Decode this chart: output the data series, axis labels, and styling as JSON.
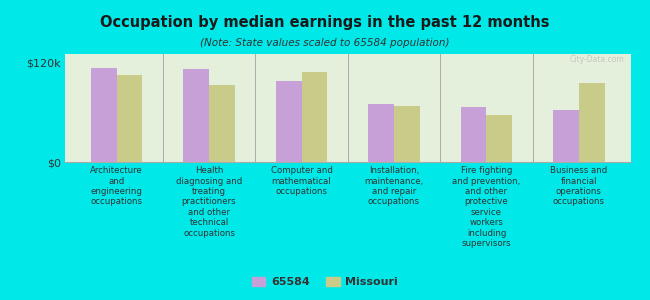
{
  "title": "Occupation by median earnings in the past 12 months",
  "subtitle": "(Note: State values scaled to 65584 population)",
  "background_color": "#00e8e8",
  "plot_bg_top": "#e8f5e0",
  "plot_bg_bottom": "#d8f0e8",
  "categories": [
    "Architecture\nand\nengineering\noccupations",
    "Health\ndiagnosing and\ntreating\npractitioners\nand other\ntechnical\noccupations",
    "Computer and\nmathematical\noccupations",
    "Installation,\nmaintenance,\nand repair\noccupations",
    "Fire fighting\nand prevention,\nand other\nprotective\nservice\nworkers\nincluding\nsupervisors",
    "Business and\nfinancial\noperations\noccupations"
  ],
  "values_65584": [
    113000,
    112000,
    98000,
    70000,
    66000,
    62000
  ],
  "values_missouri": [
    105000,
    93000,
    108000,
    68000,
    56000,
    95000
  ],
  "color_65584": "#c8a0d8",
  "color_missouri": "#c8cc88",
  "ylim": [
    0,
    130000
  ],
  "yticks": [
    0,
    120000
  ],
  "ytick_labels": [
    "$0",
    "$120k"
  ],
  "legend_label_65584": "65584",
  "legend_label_missouri": "Missouri",
  "watermark": "City-Data.com"
}
